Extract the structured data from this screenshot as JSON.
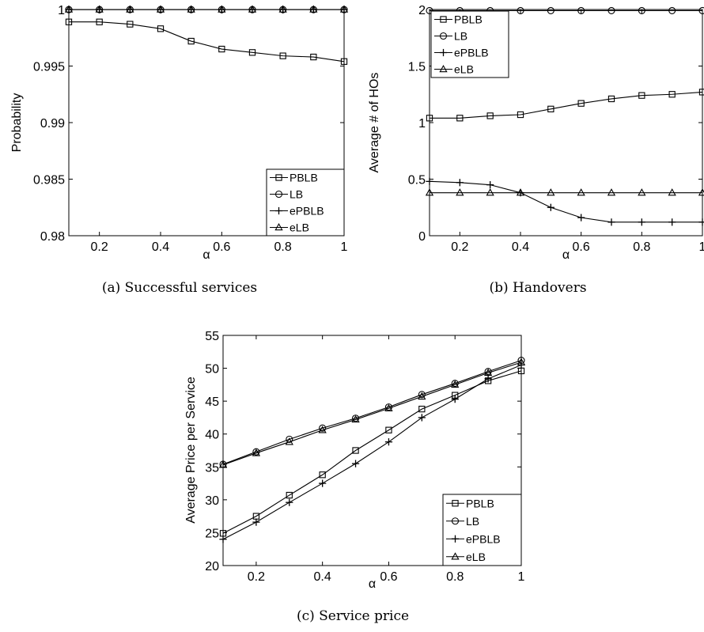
{
  "chart_data": [
    {
      "type": "line",
      "caption": "(a) Successful services",
      "xlabel": "α",
      "ylabel": "Probability",
      "xlim": [
        0.1,
        1
      ],
      "ylim": [
        0.98,
        1
      ],
      "xticks": [
        0.2,
        0.4,
        0.6,
        0.8,
        1
      ],
      "xtick_labels": [
        "0.2",
        "0.4",
        "0.6",
        "0.8",
        "1"
      ],
      "yticks": [
        0.98,
        0.985,
        0.99,
        0.995,
        1
      ],
      "ytick_labels": [
        "0.98",
        "0.985",
        "0.99",
        "0.995",
        "1"
      ],
      "legend_position": "bottom-right",
      "x": [
        0.1,
        0.2,
        0.3,
        0.4,
        0.5,
        0.6,
        0.7,
        0.8,
        0.9,
        1.0
      ],
      "series": [
        {
          "name": "PBLB",
          "marker": "square",
          "values": [
            0.9989,
            0.9989,
            0.9987,
            0.9983,
            0.9972,
            0.9965,
            0.9962,
            0.9959,
            0.9958,
            0.9954
          ]
        },
        {
          "name": "LB",
          "marker": "circle",
          "values": [
            0.99999,
            0.99999,
            0.99999,
            0.99999,
            0.99999,
            0.99999,
            0.99999,
            0.99999,
            0.99999,
            0.99999
          ]
        },
        {
          "name": "ePBLB",
          "marker": "plus",
          "values": [
            1.0,
            1.0,
            1.0,
            1.0,
            1.0,
            1.0,
            1.0,
            1.0,
            1.0,
            1.0
          ]
        },
        {
          "name": "eLB",
          "marker": "triangle",
          "values": [
            1.0,
            1.0,
            1.0,
            1.0,
            1.0,
            1.0,
            1.0,
            1.0,
            1.0,
            1.0
          ]
        }
      ]
    },
    {
      "type": "line",
      "caption": "(b) Handovers",
      "xlabel": "α",
      "ylabel": "Average # of HOs",
      "xlim": [
        0.1,
        1
      ],
      "ylim": [
        0,
        2
      ],
      "xticks": [
        0.2,
        0.4,
        0.6,
        0.8,
        1
      ],
      "xtick_labels": [
        "0.2",
        "0.4",
        "0.6",
        "0.8",
        "1"
      ],
      "yticks": [
        0,
        0.5,
        1,
        1.5,
        2
      ],
      "ytick_labels": [
        "0",
        "0.5",
        "1",
        "1.5",
        "2"
      ],
      "legend_position": "top-left",
      "x": [
        0.1,
        0.2,
        0.3,
        0.4,
        0.5,
        0.6,
        0.7,
        0.8,
        0.9,
        1.0
      ],
      "series": [
        {
          "name": "PBLB",
          "marker": "square",
          "values": [
            1.04,
            1.04,
            1.06,
            1.07,
            1.12,
            1.17,
            1.21,
            1.24,
            1.25,
            1.27
          ]
        },
        {
          "name": "LB",
          "marker": "circle",
          "values": [
            1.99,
            1.99,
            1.99,
            1.99,
            1.99,
            1.99,
            1.99,
            1.99,
            1.99,
            1.99
          ]
        },
        {
          "name": "ePBLB",
          "marker": "plus",
          "values": [
            0.48,
            0.47,
            0.45,
            0.38,
            0.25,
            0.16,
            0.12,
            0.12,
            0.12,
            0.12
          ]
        },
        {
          "name": "eLB",
          "marker": "triangle",
          "values": [
            0.38,
            0.38,
            0.38,
            0.38,
            0.38,
            0.38,
            0.38,
            0.38,
            0.38,
            0.38
          ]
        }
      ]
    },
    {
      "type": "line",
      "caption": "(c) Service price",
      "xlabel": "α",
      "ylabel": "Average Price per Service",
      "xlim": [
        0.1,
        1
      ],
      "ylim": [
        20,
        55
      ],
      "xticks": [
        0.2,
        0.4,
        0.6,
        0.8,
        1
      ],
      "xtick_labels": [
        "0.2",
        "0.4",
        "0.6",
        "0.8",
        "1"
      ],
      "yticks": [
        20,
        25,
        30,
        35,
        40,
        45,
        50,
        55
      ],
      "ytick_labels": [
        "20",
        "25",
        "30",
        "35",
        "40",
        "45",
        "50",
        "55"
      ],
      "legend_position": "bottom-right",
      "x": [
        0.1,
        0.2,
        0.3,
        0.4,
        0.5,
        0.6,
        0.7,
        0.8,
        0.9,
        1.0
      ],
      "series": [
        {
          "name": "PBLB",
          "marker": "square",
          "values": [
            24.9,
            27.5,
            30.7,
            33.8,
            37.5,
            40.6,
            43.8,
            45.9,
            48.1,
            49.6
          ]
        },
        {
          "name": "LB",
          "marker": "circle",
          "values": [
            35.4,
            37.3,
            39.2,
            40.9,
            42.4,
            44.1,
            46.0,
            47.7,
            49.5,
            51.2
          ]
        },
        {
          "name": "ePBLB",
          "marker": "plus",
          "values": [
            24.0,
            26.6,
            29.6,
            32.5,
            35.5,
            38.8,
            42.5,
            45.3,
            48.4,
            50.5
          ]
        },
        {
          "name": "eLB",
          "marker": "triangle",
          "values": [
            35.3,
            37.1,
            38.8,
            40.6,
            42.2,
            43.9,
            45.7,
            47.5,
            49.3,
            50.9
          ]
        }
      ]
    }
  ]
}
